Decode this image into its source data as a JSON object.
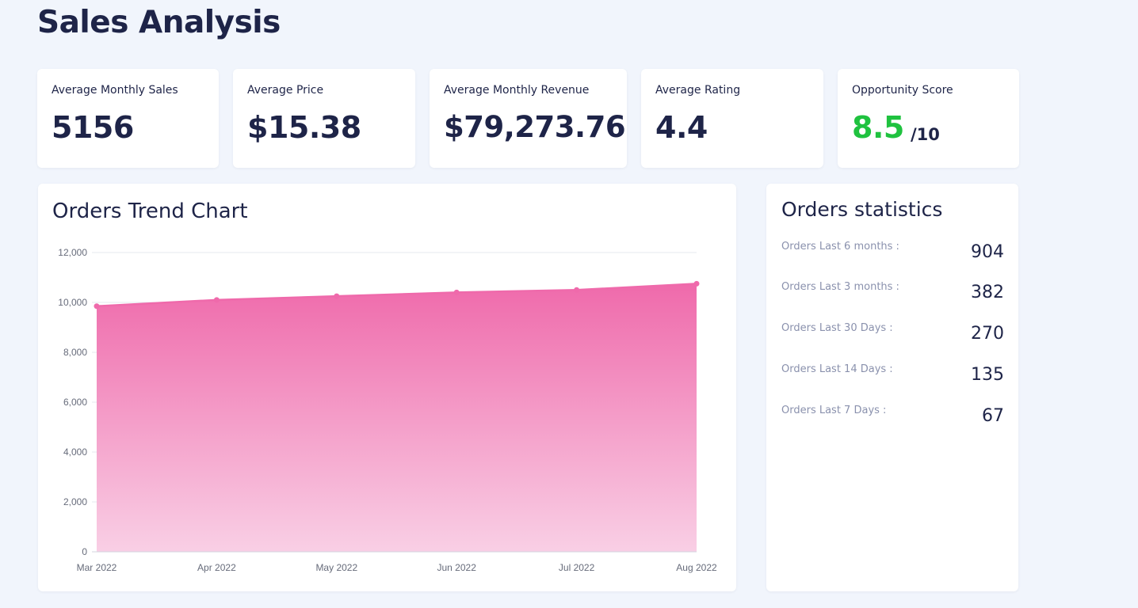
{
  "page": {
    "title": "Sales Analysis"
  },
  "kpis": [
    {
      "label": "Average Monthly Sales",
      "value": "5156"
    },
    {
      "label": "Average Price",
      "value": "$15.38"
    },
    {
      "label": "Average Monthly Revenue",
      "value": "$79,273.76"
    },
    {
      "label": "Average Rating",
      "value": "4.4"
    },
    {
      "label": "Opportunity Score",
      "value": "8.5",
      "suffix": "/10",
      "value_color": "#1fc23f"
    }
  ],
  "orders_trend": {
    "title": "Orders Trend Chart"
  },
  "chart_data": {
    "type": "area",
    "title": "Orders Trend Chart",
    "categories": [
      "Mar 2022",
      "Apr 2022",
      "May 2022",
      "Jun 2022",
      "Jul 2022",
      "Aug 2022"
    ],
    "series": [
      {
        "name": "Orders",
        "values": [
          9850,
          10100,
          10250,
          10400,
          10500,
          10750
        ],
        "color": "#ef6aab"
      }
    ],
    "ylim": [
      0,
      12000
    ],
    "yticks": [
      0,
      2000,
      4000,
      6000,
      8000,
      10000,
      12000
    ],
    "ytick_labels": [
      "0",
      "2,000",
      "4,000",
      "6,000",
      "8,000",
      "10,000",
      "12,000"
    ],
    "xlabel": "",
    "ylabel": "",
    "grid": true
  },
  "orders_statistics": {
    "title": "Orders statistics",
    "rows": [
      {
        "label": "Orders Last 6 months :",
        "value": "904"
      },
      {
        "label": "Orders Last 3 months :",
        "value": "382"
      },
      {
        "label": "Orders Last 30 Days :",
        "value": "270"
      },
      {
        "label": "Orders Last 14 Days :",
        "value": "135"
      },
      {
        "label": "Orders Last 7 Days :",
        "value": "67"
      }
    ]
  }
}
